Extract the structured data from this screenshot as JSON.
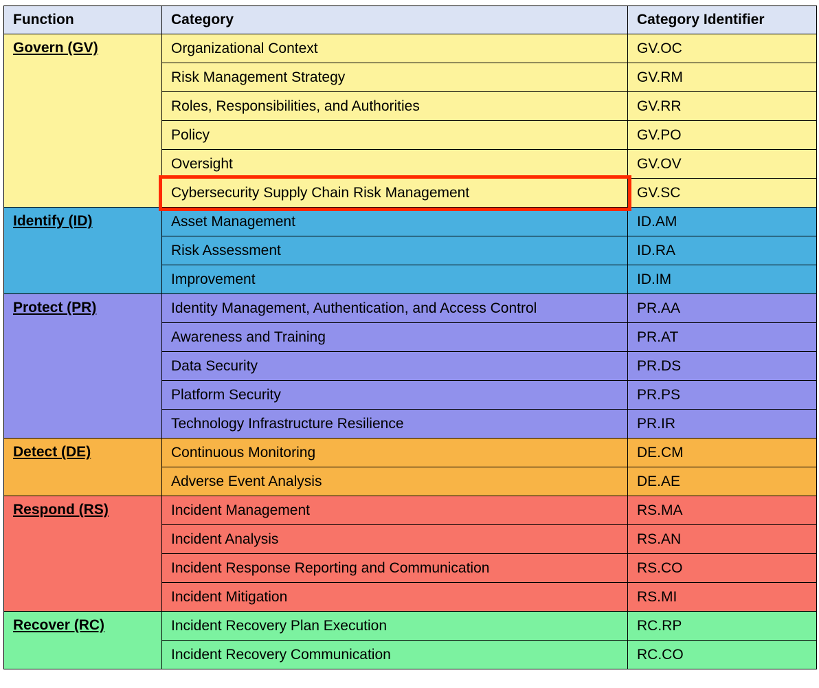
{
  "table": {
    "header": [
      "Function",
      "Category",
      "Category Identifier"
    ],
    "groups": [
      {
        "function": "Govern (GV)",
        "rows": [
          [
            "Organizational Context",
            "GV.OC"
          ],
          [
            "Risk Management Strategy",
            "GV.RM"
          ],
          [
            "Roles, Responsibilities, and Authorities",
            "GV.RR"
          ],
          [
            "Policy",
            "GV.PO"
          ],
          [
            "Oversight",
            "GV.OV"
          ],
          [
            "Cybersecurity Supply Chain Risk Management",
            "GV.SC"
          ]
        ]
      },
      {
        "function": "Identify (ID)",
        "rows": [
          [
            "Asset Management",
            "ID.AM"
          ],
          [
            "Risk Assessment",
            "ID.RA"
          ],
          [
            "Improvement",
            "ID.IM"
          ]
        ]
      },
      {
        "function": "Protect (PR)",
        "rows": [
          [
            "Identity Management, Authentication, and Access Control",
            "PR.AA"
          ],
          [
            "Awareness and Training",
            "PR.AT"
          ],
          [
            "Data Security",
            "PR.DS"
          ],
          [
            "Platform Security",
            "PR.PS"
          ],
          [
            "Technology Infrastructure Resilience",
            "PR.IR"
          ]
        ]
      },
      {
        "function": "Detect (DE)",
        "rows": [
          [
            "Continuous Monitoring",
            "DE.CM"
          ],
          [
            "Adverse Event Analysis",
            "DE.AE"
          ]
        ]
      },
      {
        "function": "Respond (RS)",
        "rows": [
          [
            "Incident Management",
            "RS.MA"
          ],
          [
            "Incident Analysis",
            "RS.AN"
          ],
          [
            "Incident Response Reporting and Communication",
            "RS.CO"
          ],
          [
            "Incident Mitigation",
            "RS.MI"
          ]
        ]
      },
      {
        "function": "Recover (RC)",
        "rows": [
          [
            "Incident Recovery Plan Execution",
            "RC.RP"
          ],
          [
            "Incident Recovery Communication",
            "RC.CO"
          ]
        ]
      }
    ]
  }
}
